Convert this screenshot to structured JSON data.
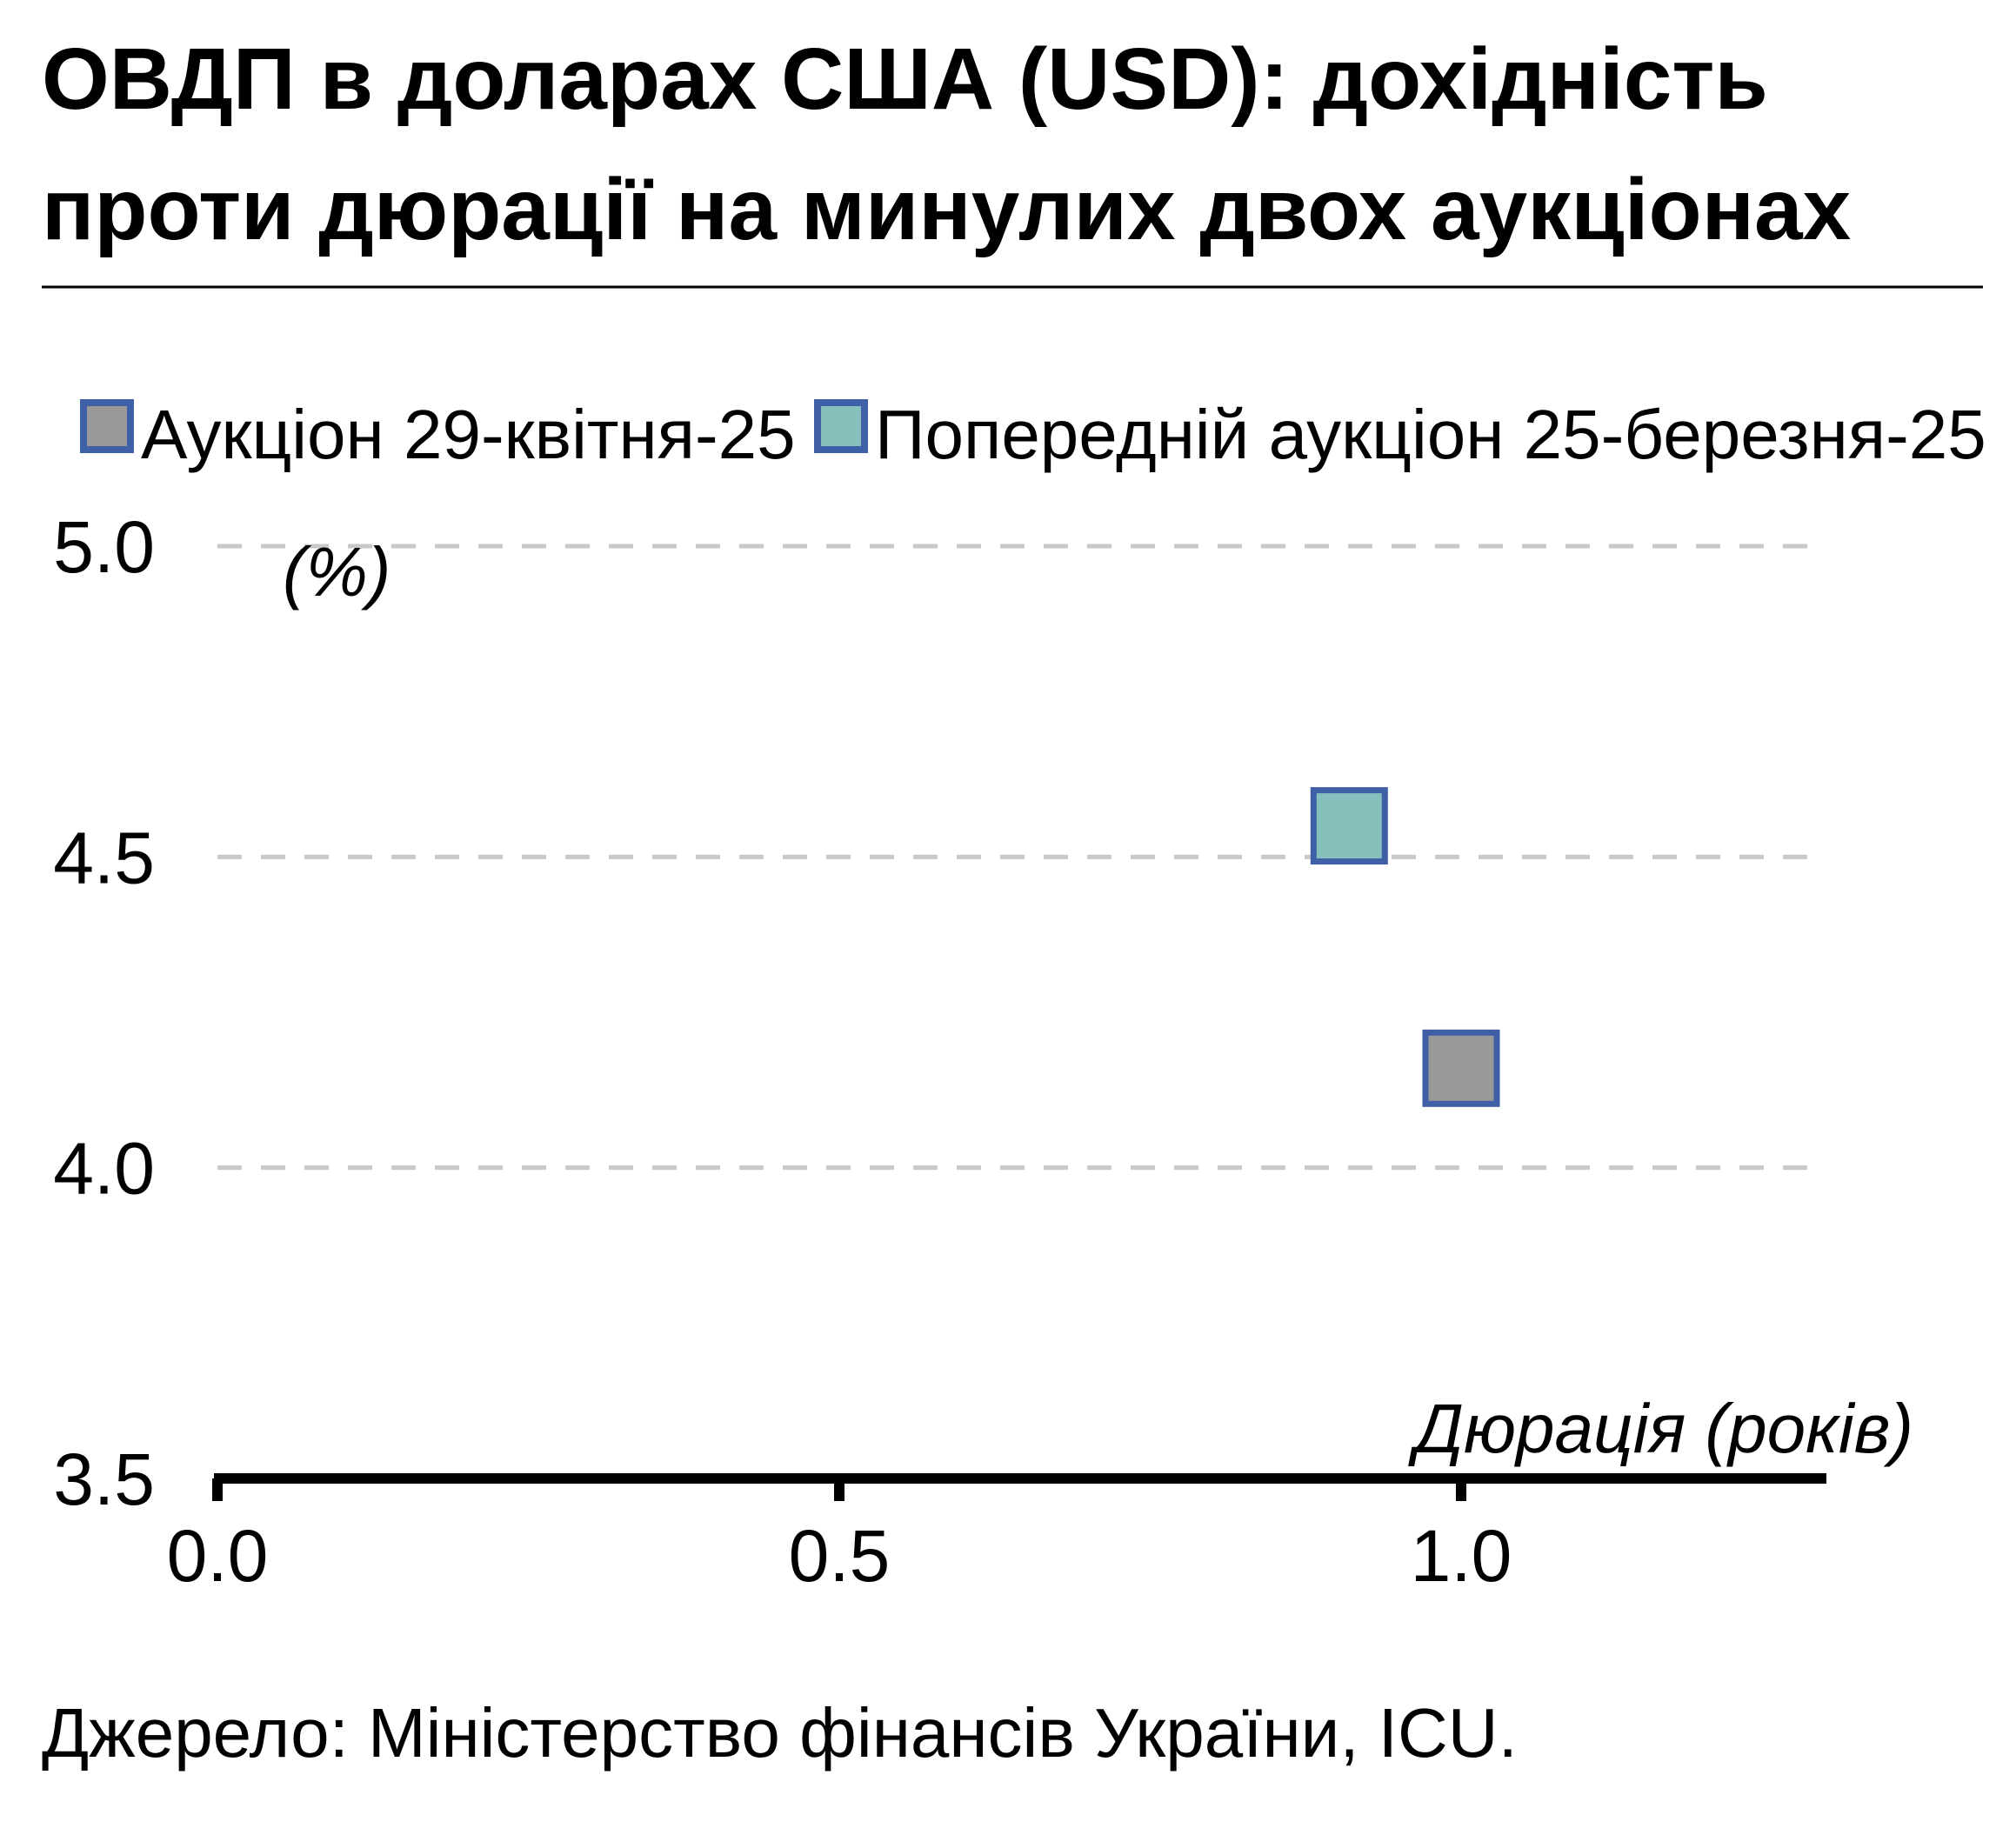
{
  "title_lines": [
    "ОВДП в доларах США (USD): дохідність",
    "проти дюрації на минулих двох аукціонах"
  ],
  "source": "Джерело: Міністерство фінансів України, ICU.",
  "colors": {
    "marker_border": "#3F5FA6",
    "series_current": "#999999",
    "series_previous": "#86C0BC",
    "grid": "#C8C8C8",
    "axis": "#000000"
  },
  "chart_data": {
    "type": "scatter",
    "title": "ОВДП в доларах США (USD): дохідність проти дюрації на минулих двох аукціонах",
    "xlabel": "Дюрація (років)",
    "ylabel": "(%)",
    "xlim": [
      0,
      1.3
    ],
    "ylim": [
      3.5,
      5.0
    ],
    "xticks": [
      "0.0",
      "0.5",
      "1.0"
    ],
    "yticks": [
      "5.0",
      "4.5",
      "4.0",
      "3.5"
    ],
    "grid": "horizontal-dashed",
    "legend_position": "top",
    "series": [
      {
        "name": "Аукціон 29-квітня-25",
        "color": "#999999",
        "points": [
          {
            "x": 1.0,
            "y": 4.16
          }
        ]
      },
      {
        "name": "Попередній аукціон 25-березня-25",
        "color": "#86C0BC",
        "points": [
          {
            "x": 0.91,
            "y": 4.55
          }
        ]
      }
    ]
  }
}
